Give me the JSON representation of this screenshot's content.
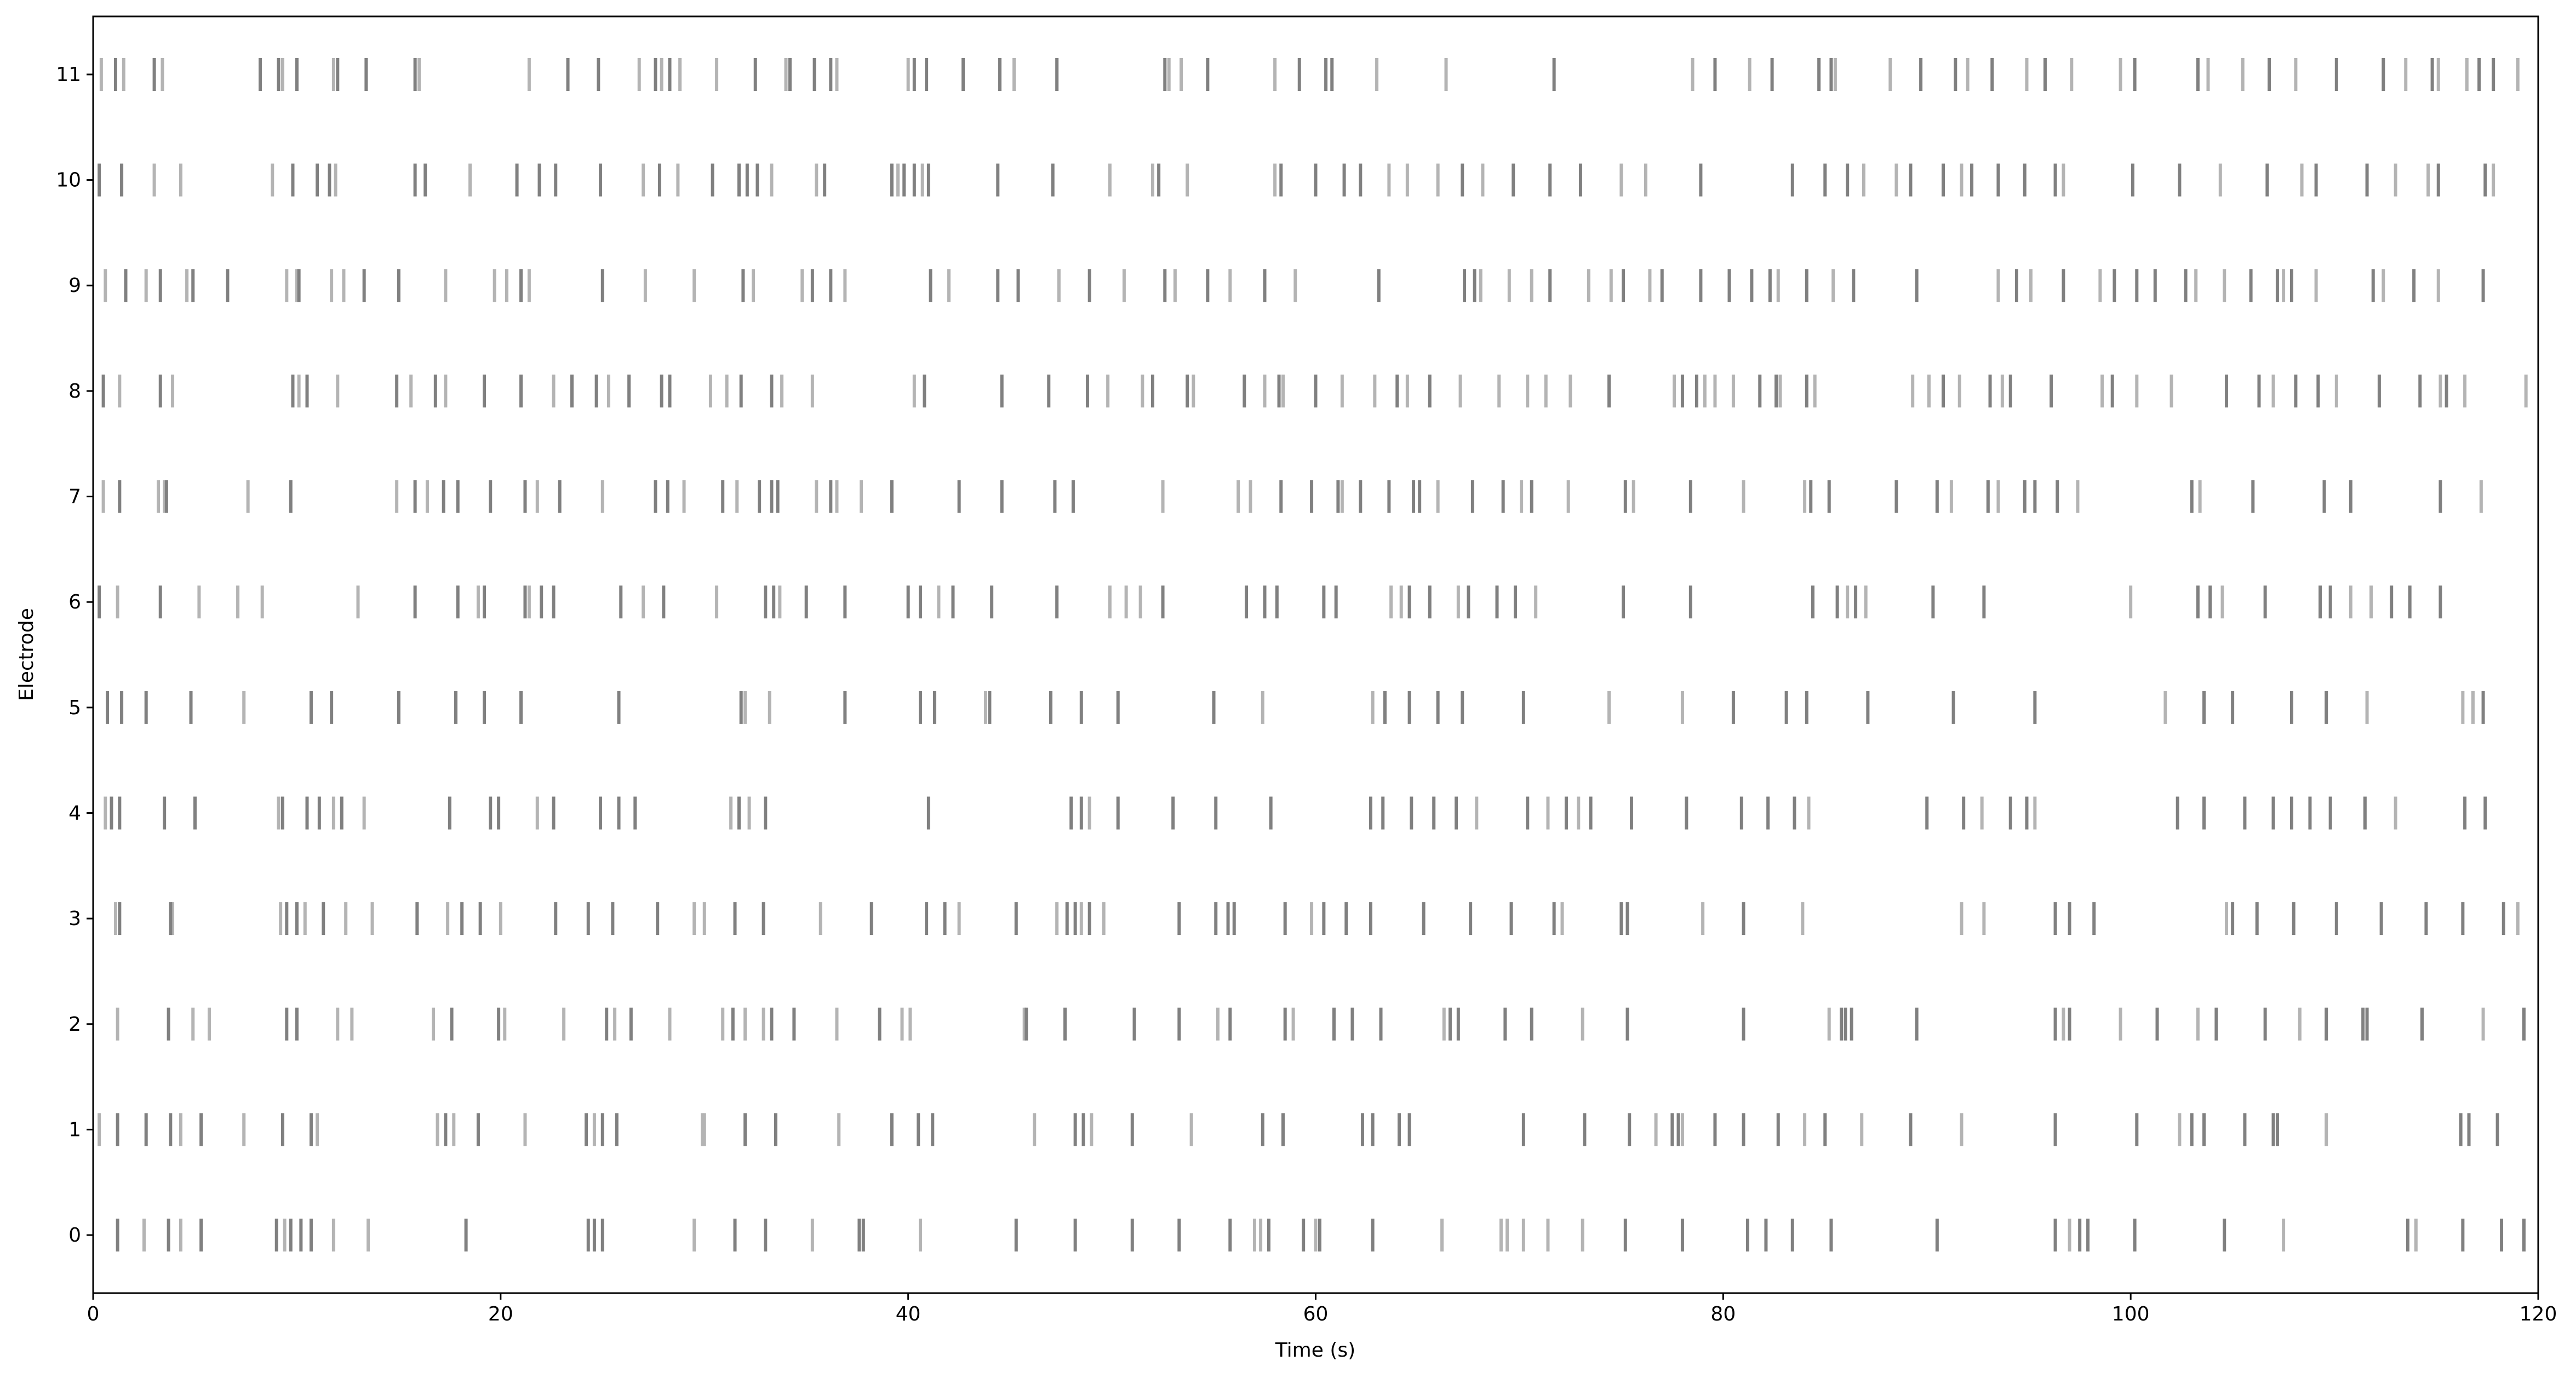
{
  "chart_data": {
    "type": "raster",
    "title": "",
    "xlabel": "Time (s)",
    "ylabel": "Electrode",
    "xlim": [
      0,
      120
    ],
    "ylim": [
      -0.55,
      11.55
    ],
    "x_ticks": [
      0,
      20,
      40,
      60,
      80,
      100,
      120
    ],
    "x_tick_labels": [
      "0",
      "20",
      "40",
      "60",
      "80",
      "100",
      "120"
    ],
    "y_ticks": [
      0,
      1,
      2,
      3,
      4,
      5,
      6,
      7,
      8,
      9,
      10,
      11
    ],
    "y_tick_labels": [
      "0",
      "1",
      "2",
      "3",
      "4",
      "5",
      "6",
      "7",
      "8",
      "9",
      "10",
      "11"
    ],
    "grid": false,
    "legend": "none",
    "colors": {
      "dark_event": "#808080",
      "light_event": "#b4b4b4",
      "axes": "#000000"
    },
    "series": [
      {
        "electrode": 0,
        "dark": [
          1.2,
          3.7,
          5.3,
          9.0,
          9.7,
          10.2,
          10.7,
          18.3,
          24.3,
          24.6,
          25.0,
          31.5,
          33.0,
          37.6,
          37.8,
          45.3,
          48.2,
          51.0,
          53.3,
          55.8,
          57.7,
          59.4,
          60.2,
          62.8,
          75.2,
          78.0,
          81.2,
          82.1,
          83.4,
          85.3,
          90.5,
          96.3,
          97.5,
          97.9,
          100.2,
          104.6,
          113.6,
          116.3,
          118.2,
          119.3
        ],
        "light": [
          2.5,
          4.3,
          9.4,
          11.8,
          13.5,
          29.5,
          35.3,
          40.6,
          57.0,
          57.3,
          60.0,
          66.2,
          69.1,
          69.4,
          70.2,
          71.4,
          73.1,
          97.0,
          107.5,
          114.0
        ]
      },
      {
        "electrode": 1,
        "dark": [
          1.2,
          2.6,
          3.8,
          5.3,
          9.3,
          10.7,
          17.3,
          18.9,
          24.2,
          25.0,
          25.7,
          32.0,
          33.5,
          39.2,
          40.5,
          41.2,
          48.2,
          48.6,
          51.0,
          57.4,
          58.4,
          62.3,
          62.8,
          64.1,
          64.6,
          70.2,
          73.2,
          75.4,
          77.5,
          77.8,
          79.6,
          81.0,
          82.7,
          85.0,
          89.2,
          96.3,
          100.3,
          103.0,
          103.6,
          105.6,
          107.0,
          107.2,
          116.2,
          116.6,
          118.0
        ],
        "light": [
          0.3,
          4.3,
          7.4,
          11.0,
          16.9,
          17.7,
          21.2,
          24.6,
          29.9,
          30.0,
          36.6,
          46.2,
          49.0,
          53.9,
          76.7,
          78.0,
          84.0,
          86.8,
          91.7,
          102.4,
          109.6
        ]
      },
      {
        "electrode": 2,
        "dark": [
          3.7,
          9.5,
          10.0,
          17.6,
          19.9,
          25.2,
          26.4,
          31.4,
          33.3,
          34.4,
          38.6,
          45.8,
          47.7,
          51.1,
          53.3,
          55.8,
          58.5,
          60.9,
          61.8,
          63.2,
          66.6,
          67.0,
          69.3,
          70.6,
          75.3,
          81.0,
          85.8,
          86.0,
          86.3,
          89.5,
          96.3,
          97.0,
          101.3,
          104.2,
          106.6,
          109.6,
          111.4,
          111.6,
          114.3,
          119.3
        ],
        "light": [
          1.2,
          4.9,
          5.7,
          12.0,
          12.7,
          16.7,
          20.2,
          23.1,
          25.6,
          28.3,
          30.9,
          32.0,
          32.9,
          36.5,
          39.7,
          40.1,
          45.7,
          55.2,
          58.9,
          66.3,
          73.1,
          85.2,
          96.7,
          99.5,
          103.3,
          108.3,
          117.3
        ]
      },
      {
        "electrode": 3,
        "dark": [
          1.3,
          3.8,
          9.5,
          10.0,
          11.3,
          15.9,
          18.1,
          19.0,
          22.7,
          24.3,
          25.5,
          27.7,
          31.5,
          32.9,
          38.2,
          40.9,
          41.8,
          45.3,
          47.8,
          48.2,
          48.9,
          53.3,
          55.1,
          55.7,
          56.0,
          58.5,
          60.4,
          61.5,
          62.7,
          65.3,
          67.6,
          69.6,
          71.7,
          75.0,
          75.3,
          81.0,
          96.3,
          97.0,
          98.2,
          105.0,
          106.2,
          108.0,
          110.1,
          112.3,
          114.5,
          116.3,
          118.3
        ],
        "light": [
          1.1,
          3.9,
          9.2,
          10.4,
          12.4,
          13.7,
          17.4,
          20.0,
          29.5,
          30.0,
          35.7,
          42.5,
          47.3,
          48.5,
          49.6,
          59.8,
          72.1,
          79.0,
          83.9,
          91.7,
          92.8,
          104.7,
          119.0
        ]
      },
      {
        "electrode": 4,
        "dark": [
          0.9,
          1.3,
          3.5,
          5.0,
          9.3,
          10.5,
          11.1,
          12.2,
          17.5,
          19.5,
          19.9,
          22.6,
          24.9,
          25.8,
          26.6,
          31.7,
          33.0,
          41.0,
          48.0,
          48.5,
          50.3,
          53.0,
          55.1,
          57.8,
          62.7,
          63.3,
          64.7,
          65.8,
          66.9,
          70.4,
          72.3,
          73.5,
          75.5,
          78.2,
          80.9,
          82.2,
          83.5,
          90.0,
          91.8,
          94.1,
          94.9,
          102.3,
          103.6,
          105.6,
          107.0,
          107.9,
          108.8,
          109.8,
          111.5,
          116.4,
          117.4
        ],
        "light": [
          0.6,
          9.1,
          11.8,
          13.3,
          21.8,
          31.3,
          32.2,
          48.9,
          67.9,
          71.4,
          72.9,
          84.2,
          92.7,
          95.3,
          113.0
        ]
      },
      {
        "electrode": 5,
        "dark": [
          0.7,
          1.4,
          2.6,
          4.8,
          10.7,
          11.7,
          15.0,
          17.8,
          19.2,
          21.0,
          25.8,
          31.8,
          36.9,
          40.6,
          41.3,
          44.0,
          47.0,
          48.5,
          50.3,
          55.0,
          63.4,
          64.6,
          66.0,
          67.2,
          70.2,
          80.5,
          83.1,
          84.1,
          87.1,
          91.3,
          95.3,
          103.6,
          105.0,
          107.9,
          109.6,
          117.3
        ],
        "light": [
          7.4,
          32.0,
          33.2,
          43.8,
          57.4,
          62.8,
          74.4,
          78.0,
          101.7,
          111.6,
          116.3,
          116.8
        ]
      },
      {
        "electrode": 6,
        "dark": [
          0.3,
          3.3,
          15.8,
          17.9,
          19.2,
          21.2,
          22.0,
          22.6,
          25.9,
          28.0,
          33.0,
          33.4,
          35.0,
          36.9,
          40.0,
          40.6,
          42.2,
          44.1,
          47.3,
          52.5,
          56.6,
          57.5,
          58.1,
          60.4,
          61.0,
          64.6,
          65.6,
          67.5,
          68.9,
          69.8,
          75.1,
          78.4,
          84.4,
          85.6,
          86.5,
          90.3,
          92.8,
          103.3,
          103.9,
          106.6,
          109.3,
          109.8,
          112.8,
          113.7,
          115.2
        ],
        "light": [
          1.2,
          5.2,
          7.1,
          8.3,
          13.0,
          18.9,
          21.4,
          27.0,
          30.6,
          33.7,
          41.5,
          49.9,
          50.7,
          51.4,
          63.7,
          64.2,
          67.0,
          70.8,
          86.1,
          87.0,
          100.0,
          104.5,
          110.8,
          111.8
        ]
      },
      {
        "electrode": 7,
        "dark": [
          1.3,
          3.6,
          9.7,
          15.8,
          17.2,
          17.9,
          19.5,
          21.2,
          22.9,
          27.6,
          28.2,
          30.9,
          32.7,
          33.3,
          33.6,
          36.2,
          39.2,
          42.5,
          44.6,
          47.2,
          48.1,
          58.3,
          59.8,
          61.1,
          62.2,
          63.6,
          64.8,
          65.1,
          67.7,
          69.2,
          70.6,
          75.2,
          78.4,
          84.3,
          85.2,
          88.5,
          90.5,
          93.0,
          94.8,
          95.3,
          96.4,
          103.0,
          106.0,
          109.5,
          110.8,
          115.2
        ],
        "light": [
          0.5,
          3.2,
          3.5,
          7.6,
          14.9,
          16.4,
          21.8,
          25.0,
          29.0,
          31.6,
          35.5,
          36.5,
          37.7,
          52.5,
          56.2,
          56.8,
          61.3,
          66.0,
          70.1,
          72.4,
          75.6,
          81.0,
          84.0,
          91.2,
          93.5,
          97.4,
          103.4,
          117.2
        ]
      },
      {
        "electrode": 8,
        "dark": [
          0.5,
          3.3,
          9.8,
          10.5,
          14.9,
          16.8,
          19.2,
          21.0,
          23.5,
          24.7,
          26.3,
          27.9,
          28.3,
          31.8,
          33.3,
          40.8,
          44.6,
          46.9,
          48.8,
          52.0,
          53.7,
          56.5,
          58.2,
          60.0,
          64.0,
          65.6,
          74.4,
          78.0,
          78.7,
          81.8,
          82.6,
          84.1,
          90.8,
          93.1,
          94.1,
          96.1,
          99.1,
          104.7,
          106.3,
          108.1,
          109.2,
          112.2,
          114.2,
          115.5
        ],
        "light": [
          1.3,
          3.9,
          10.1,
          12.0,
          15.6,
          17.3,
          22.6,
          25.3,
          30.3,
          31.1,
          33.8,
          35.3,
          40.3,
          49.8,
          51.5,
          54.0,
          57.5,
          58.4,
          61.3,
          62.9,
          64.5,
          67.1,
          69.0,
          70.4,
          71.3,
          72.5,
          77.6,
          79.1,
          79.6,
          80.5,
          82.8,
          84.5,
          89.3,
          90.1,
          91.6,
          93.7,
          98.6,
          100.3,
          102.0,
          107.0,
          110.1,
          115.2,
          116.4,
          119.4
        ]
      },
      {
        "electrode": 9,
        "dark": [
          1.6,
          3.3,
          4.9,
          6.6,
          10.1,
          13.3,
          15.0,
          21.0,
          25.0,
          31.9,
          35.3,
          36.2,
          41.1,
          44.4,
          45.4,
          48.9,
          52.6,
          54.7,
          57.5,
          63.1,
          67.3,
          67.8,
          71.5,
          75.1,
          77.0,
          78.9,
          80.3,
          81.4,
          82.3,
          84.1,
          86.4,
          89.5,
          94.4,
          96.7,
          99.2,
          100.3,
          101.2,
          102.7,
          105.9,
          107.2,
          107.9,
          111.9,
          113.9,
          117.3
        ],
        "light": [
          0.6,
          2.6,
          4.6,
          9.5,
          10.0,
          11.7,
          12.3,
          17.3,
          19.7,
          20.3,
          21.4,
          27.1,
          29.5,
          32.4,
          34.8,
          36.9,
          42.0,
          47.4,
          50.6,
          53.1,
          55.8,
          59.0,
          68.1,
          69.5,
          70.6,
          73.4,
          74.5,
          76.4,
          82.7,
          85.4,
          93.5,
          95.1,
          98.5,
          103.2,
          104.6,
          107.5,
          109.1,
          112.4,
          115.1
        ]
      },
      {
        "electrode": 10,
        "dark": [
          0.3,
          1.4,
          9.8,
          11.0,
          11.6,
          15.8,
          16.3,
          20.8,
          21.9,
          22.7,
          24.9,
          27.8,
          30.4,
          31.7,
          32.1,
          32.6,
          35.9,
          39.2,
          39.8,
          40.3,
          41.0,
          44.4,
          47.1,
          52.3,
          58.3,
          60.0,
          61.4,
          62.2,
          67.2,
          69.7,
          71.5,
          73.0,
          78.9,
          83.4,
          85.0,
          86.1,
          89.2,
          90.8,
          92.2,
          93.5,
          94.8,
          96.3,
          100.1,
          102.4,
          106.7,
          109.1,
          111.6,
          115.1,
          117.4
        ],
        "light": [
          3.0,
          4.3,
          8.8,
          11.9,
          18.5,
          27.0,
          28.7,
          33.3,
          35.5,
          39.5,
          40.7,
          49.9,
          52.0,
          53.7,
          58.0,
          63.6,
          64.5,
          66.0,
          68.2,
          75.0,
          76.2,
          86.9,
          88.5,
          91.7,
          96.7,
          104.4,
          108.4,
          113.0,
          114.6,
          117.8
        ]
      },
      {
        "electrode": 11,
        "dark": [
          1.1,
          3.0,
          8.2,
          9.1,
          10.0,
          12.0,
          13.4,
          15.8,
          23.3,
          24.8,
          27.6,
          28.3,
          32.5,
          34.2,
          35.4,
          36.2,
          40.3,
          40.9,
          42.7,
          44.5,
          47.3,
          52.6,
          54.7,
          59.2,
          60.5,
          60.8,
          71.7,
          79.6,
          82.4,
          84.7,
          85.3,
          89.7,
          91.4,
          93.2,
          95.8,
          100.2,
          103.3,
          106.8,
          110.1,
          112.4,
          114.8,
          117.1,
          117.8
        ],
        "light": [
          0.4,
          1.5,
          3.4,
          9.3,
          11.8,
          16.0,
          21.4,
          26.8,
          27.9,
          28.8,
          30.6,
          34.0,
          36.5,
          40.0,
          45.2,
          52.8,
          53.4,
          58.0,
          63.0,
          66.4,
          78.5,
          81.3,
          85.5,
          88.2,
          92.0,
          94.9,
          97.1,
          99.5,
          103.8,
          105.5,
          108.1,
          113.5,
          115.1,
          116.5,
          119.0
        ]
      }
    ]
  }
}
